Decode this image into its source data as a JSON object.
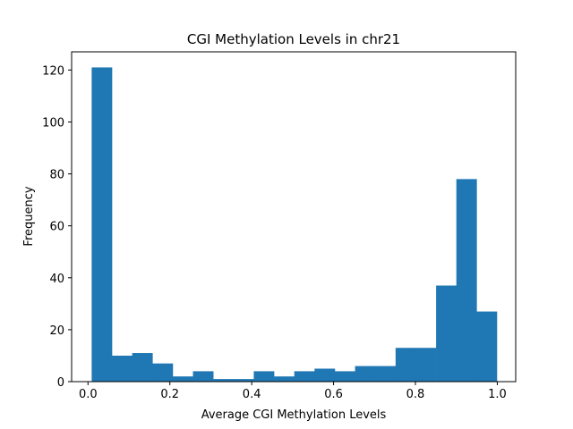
{
  "chart_data": {
    "type": "bar",
    "title": "CGI Methylation Levels in chr21",
    "xlabel": "Average CGI Methylation Levels",
    "ylabel": "Frequency",
    "xlim": [
      -0.04,
      1.045
    ],
    "ylim": [
      0,
      127
    ],
    "x_ticks": [
      0.0,
      0.2,
      0.4,
      0.6,
      0.8,
      1.0
    ],
    "x_tick_labels": [
      "0.0",
      "0.2",
      "0.4",
      "0.6",
      "0.8",
      "1.0"
    ],
    "y_ticks": [
      0,
      20,
      40,
      60,
      80,
      100,
      120
    ],
    "y_tick_labels": [
      "0",
      "20",
      "40",
      "60",
      "80",
      "100",
      "120"
    ],
    "bin_edges": [
      0.009,
      0.0585,
      0.108,
      0.1575,
      0.207,
      0.2565,
      0.306,
      0.3555,
      0.405,
      0.4545,
      0.504,
      0.5535,
      0.603,
      0.6525,
      0.702,
      0.7515,
      0.801,
      0.8505,
      0.9,
      0.9495,
      0.999
    ],
    "values": [
      121,
      10,
      11,
      7,
      2,
      4,
      1,
      1,
      4,
      2,
      4,
      5,
      4,
      6,
      6,
      13,
      13,
      37,
      78,
      27
    ],
    "bar_color": "#1f77b4",
    "grid": false,
    "legend": "none"
  }
}
